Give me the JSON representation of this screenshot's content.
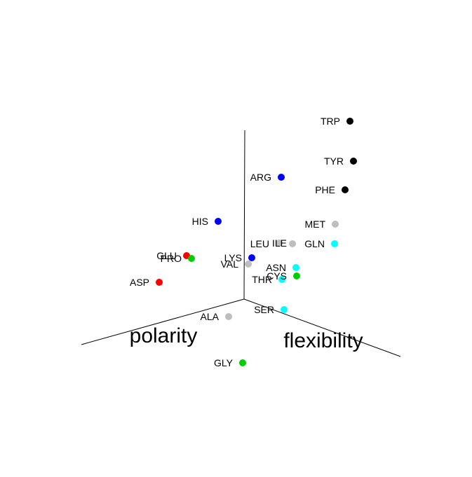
{
  "chart_data": {
    "type": "scatter",
    "axis_titles": {
      "x": "polarity",
      "y": "flexibility",
      "z": ""
    },
    "legend": "none",
    "grid": false,
    "groups": {
      "aromatic": "#000000",
      "basic": "#0000ff",
      "hydrophobic": "#bebebe",
      "polar_amide": "#00ffff",
      "acidic": "#ff0000",
      "special": "#00cd00"
    },
    "points": [
      {
        "name": "TRP",
        "group": "aromatic"
      },
      {
        "name": "TYR",
        "group": "aromatic"
      },
      {
        "name": "PHE",
        "group": "aromatic"
      },
      {
        "name": "ARG",
        "group": "basic"
      },
      {
        "name": "HIS",
        "group": "basic"
      },
      {
        "name": "LYS",
        "group": "basic"
      },
      {
        "name": "MET",
        "group": "hydrophobic"
      },
      {
        "name": "ILE",
        "group": "hydrophobic"
      },
      {
        "name": "LEU",
        "group": "hydrophobic"
      },
      {
        "name": "VAL",
        "group": "hydrophobic"
      },
      {
        "name": "ALA",
        "group": "hydrophobic"
      },
      {
        "name": "GLN",
        "group": "polar_amide"
      },
      {
        "name": "ASN",
        "group": "polar_amide"
      },
      {
        "name": "THR",
        "group": "polar_amide"
      },
      {
        "name": "SER",
        "group": "polar_amide"
      },
      {
        "name": "GLU",
        "group": "acidic"
      },
      {
        "name": "ASP",
        "group": "acidic"
      },
      {
        "name": "PRO",
        "group": "special"
      },
      {
        "name": "CYS",
        "group": "special"
      },
      {
        "name": "GLY",
        "group": "special"
      }
    ]
  }
}
